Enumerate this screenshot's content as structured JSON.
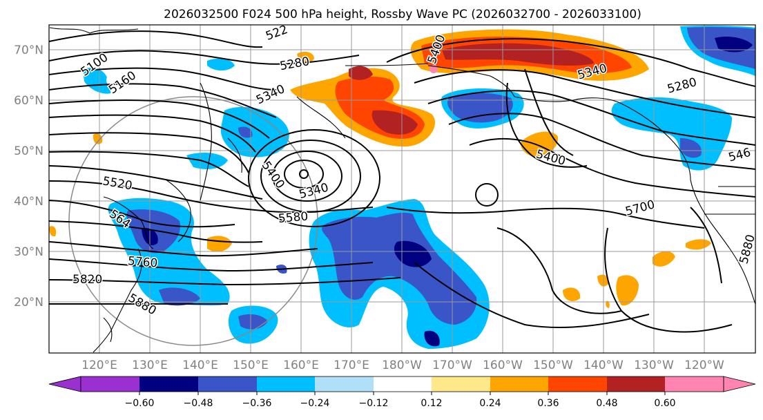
{
  "title": "2026032500 F024 500 hPa height, Rossby Wave PC (2026032700 - 2026033100)",
  "lat_labels": [
    "70°N",
    "60°N",
    "50°N",
    "40°N",
    "30°N",
    "20°N"
  ],
  "lon_labels": [
    "120°E",
    "130°E",
    "140°E",
    "150°E",
    "160°E",
    "170°E",
    "180°W",
    "170°W",
    "160°W",
    "150°W",
    "140°W",
    "130°W",
    "120°W"
  ],
  "colorbar": {
    "ticks": [
      "−0.60",
      "−0.48",
      "−0.36",
      "−0.24",
      "−0.12",
      "0.12",
      "0.24",
      "0.36",
      "0.48",
      "0.60"
    ],
    "colors": {
      "extend_low": "#9b30d0",
      "lt_-0.60": "#000080",
      "-0.60_-0.48": "#000080",
      "-0.48_-0.36": "#3a55c8",
      "-0.36_-0.24": "#00bfff",
      "-0.24_-0.12": "#b0e0f8",
      "-0.12_0.12": "#ffffff",
      "0.12_0.24": "#ffe88a",
      "0.24_0.36": "#ffa500",
      "0.36_0.48": "#ff4500",
      "0.48_0.60": "#b22222",
      "extend_high": "#ff85b0"
    }
  },
  "contour_labels": [
    "5100",
    "5160",
    "522",
    "5280",
    "5340",
    "5400",
    "5400",
    "5340",
    "5520",
    "564",
    "5580",
    "5760",
    "5820",
    "5880",
    "5400",
    "5700",
    "5340",
    "5280",
    "546",
    "5880"
  ],
  "colors": {
    "grid": "#999999",
    "contour": "#000000",
    "axis_label": "#808080"
  }
}
